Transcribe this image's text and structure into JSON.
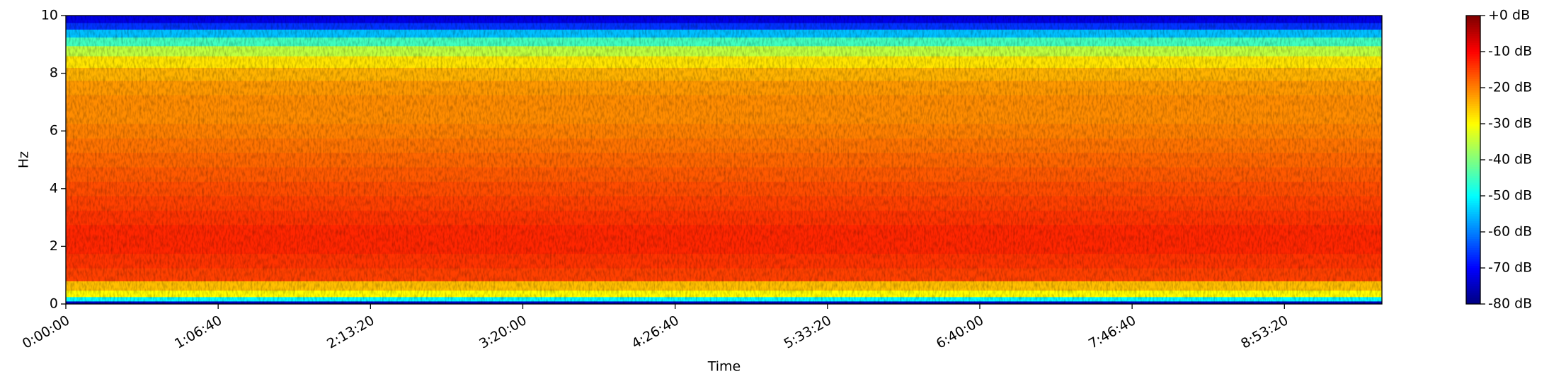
{
  "chart_data": {
    "type": "spectrogram",
    "xlabel": "Time",
    "ylabel": "Hz",
    "xlim": [
      0,
      34560
    ],
    "ylim": [
      0,
      10
    ],
    "xticks": [
      {
        "value": 0,
        "label": "0:00:00"
      },
      {
        "value": 4000,
        "label": "1:06:40"
      },
      {
        "value": 8000,
        "label": "2:13:20"
      },
      {
        "value": 12000,
        "label": "3:20:00"
      },
      {
        "value": 16000,
        "label": "4:26:40"
      },
      {
        "value": 20000,
        "label": "5:33:20"
      },
      {
        "value": 24000,
        "label": "6:40:00"
      },
      {
        "value": 28000,
        "label": "7:46:40"
      },
      {
        "value": 32000,
        "label": "8:53:20"
      }
    ],
    "yticks": [
      0,
      2,
      4,
      6,
      8,
      10
    ],
    "colormap": "jet",
    "clim": [
      -80,
      0
    ],
    "cticks": [
      {
        "value": 0,
        "label": "+0 dB"
      },
      {
        "value": -10,
        "label": "-10 dB"
      },
      {
        "value": -20,
        "label": "-20 dB"
      },
      {
        "value": -30,
        "label": "-30 dB"
      },
      {
        "value": -40,
        "label": "-40 dB"
      },
      {
        "value": -50,
        "label": "-50 dB"
      },
      {
        "value": -60,
        "label": "-60 dB"
      },
      {
        "value": -70,
        "label": "-70 dB"
      },
      {
        "value": -80,
        "label": "-80 dB"
      }
    ],
    "frequencies": [
      0.05,
      0.15,
      0.35,
      0.6,
      1,
      1.5,
      2,
      2.5,
      3,
      3.5,
      4,
      4.5,
      5,
      5.5,
      6,
      6.5,
      7,
      7.5,
      8,
      8.4,
      8.8,
      9.1,
      9.4,
      9.65,
      9.85
    ],
    "values": [
      -75,
      -50,
      -30,
      -25,
      -15,
      -14,
      -13,
      -13,
      -14,
      -15,
      -16,
      -17,
      -18,
      -19,
      -20,
      -21,
      -21,
      -22,
      -24,
      -28,
      -35,
      -45,
      -55,
      -66,
      -72
    ]
  }
}
